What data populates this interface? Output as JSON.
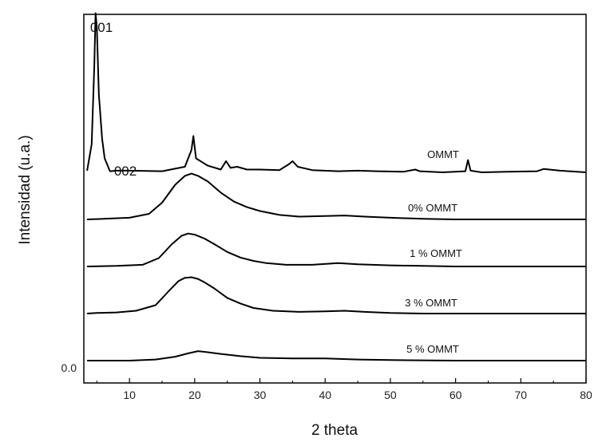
{
  "chart_data": {
    "type": "line",
    "title": "",
    "xlabel": "2 theta",
    "ylabel": "Intensidad (u.a.)",
    "xlim": [
      3,
      80
    ],
    "xticks": [
      10,
      20,
      30,
      40,
      50,
      60,
      70,
      80
    ],
    "ytick_labels": [
      "0.0"
    ],
    "grid": false,
    "series_offset_note": "traces vertically stacked",
    "annotations": [
      {
        "text": "001",
        "x": 5
      },
      {
        "text": "002",
        "x": 9.5
      }
    ],
    "series": [
      {
        "name": "OMMT",
        "offset": 4,
        "x": [
          3.5,
          4.2,
          4.6,
          4.8,
          5.0,
          5.3,
          5.8,
          6.2,
          7,
          8,
          10,
          15,
          18.5,
          19.5,
          19.8,
          20.2,
          22,
          24,
          24.8,
          25.5,
          26.5,
          28,
          30,
          33,
          34.5,
          35,
          35.8,
          38,
          42,
          45,
          48,
          52,
          53.8,
          54.5,
          58,
          61.5,
          61.9,
          62.3,
          64,
          68,
          72.5,
          73.5,
          76,
          80
        ],
        "values": [
          0.03,
          0.5,
          1.9,
          2.85,
          2.6,
          1.4,
          0.6,
          0.25,
          0.02,
          0.03,
          0.03,
          0.02,
          0.1,
          0.4,
          0.65,
          0.25,
          0.12,
          0.05,
          0.2,
          0.08,
          0.1,
          0.05,
          0.05,
          0.04,
          0.15,
          0.2,
          0.1,
          0.04,
          0.02,
          0.03,
          0.02,
          0.01,
          0.05,
          0.02,
          0.0,
          0.02,
          0.22,
          0.03,
          0.0,
          0.01,
          0.02,
          0.06,
          0.03,
          0.0
        ]
      },
      {
        "name": "0% OMMT",
        "offset": 3,
        "x": [
          3.5,
          6,
          10,
          13,
          15,
          17,
          18.5,
          19.5,
          20.5,
          22,
          24,
          26,
          28,
          30,
          33,
          36,
          40,
          43,
          46,
          50,
          55,
          60,
          65,
          70,
          75,
          80
        ],
        "values": [
          0.0,
          0.01,
          0.03,
          0.1,
          0.3,
          0.62,
          0.78,
          0.82,
          0.78,
          0.68,
          0.48,
          0.32,
          0.22,
          0.15,
          0.08,
          0.05,
          0.06,
          0.07,
          0.05,
          0.03,
          0.01,
          0.0,
          0.0,
          0.0,
          0.0,
          0.0
        ]
      },
      {
        "name": "1 % OMMT",
        "offset": 2,
        "x": [
          3.5,
          8,
          12,
          14.5,
          16.5,
          18,
          19,
          20,
          21.5,
          23,
          25,
          27,
          29,
          31,
          34,
          38,
          42,
          45,
          50,
          55,
          60,
          70,
          80
        ],
        "values": [
          0.0,
          0.01,
          0.03,
          0.15,
          0.4,
          0.55,
          0.59,
          0.57,
          0.5,
          0.4,
          0.26,
          0.16,
          0.1,
          0.06,
          0.03,
          0.03,
          0.06,
          0.04,
          0.02,
          0.01,
          0.0,
          0.0,
          0.0
        ]
      },
      {
        "name": "3 % OMMT",
        "offset": 1,
        "x": [
          3.5,
          5,
          8,
          11,
          14,
          16,
          17.5,
          18.5,
          19.5,
          20.5,
          21.5,
          23,
          25,
          27,
          29,
          32,
          36,
          40,
          43,
          46,
          50,
          55,
          60,
          70,
          80
        ],
        "values": [
          0.0,
          0.01,
          0.02,
          0.05,
          0.15,
          0.4,
          0.58,
          0.64,
          0.65,
          0.62,
          0.56,
          0.45,
          0.28,
          0.18,
          0.1,
          0.05,
          0.03,
          0.04,
          0.05,
          0.03,
          0.01,
          0.0,
          0.0,
          0.0,
          0.0
        ]
      },
      {
        "name": "5 % OMMT",
        "offset": 0,
        "x": [
          3.5,
          10,
          14,
          17,
          19,
          20.5,
          22,
          24,
          27,
          30,
          35,
          40,
          45,
          50,
          60,
          70,
          80
        ],
        "values": [
          0.0,
          0.0,
          0.02,
          0.07,
          0.13,
          0.17,
          0.15,
          0.12,
          0.08,
          0.05,
          0.04,
          0.04,
          0.02,
          0.01,
          0.0,
          0.0,
          0.0
        ]
      }
    ]
  }
}
